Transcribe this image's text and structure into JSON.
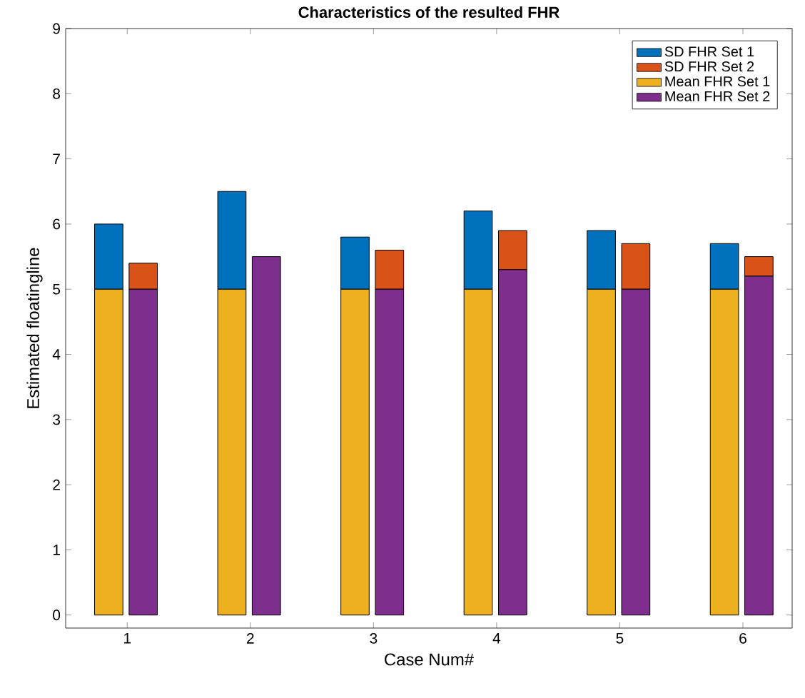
{
  "chart_data": {
    "type": "bar",
    "title": "Characteristics of the resulted FHR",
    "xlabel": "Case Num#",
    "ylabel": "Estimated floatingline",
    "categories": [
      "1",
      "2",
      "3",
      "4",
      "5",
      "6"
    ],
    "series": [
      {
        "name": "SD FHR Set 1",
        "color": "#0072bd",
        "values": [
          1.0,
          1.5,
          0.8,
          1.2,
          0.9,
          0.7
        ],
        "base": [
          5,
          5,
          5,
          5,
          5,
          5
        ]
      },
      {
        "name": "SD FHR Set 2",
        "color": "#d95319",
        "values": [
          0.4,
          null,
          0.6,
          0.6,
          0.7,
          0.3
        ],
        "base": [
          5.0,
          null,
          5.0,
          5.3,
          5.0,
          5.2
        ]
      },
      {
        "name": "Mean FHR Set 1",
        "color": "#edb120",
        "values": [
          5,
          5,
          5,
          5,
          5,
          5
        ]
      },
      {
        "name": "Mean FHR Set 2",
        "color": "#7e2f8e",
        "values": [
          5.0,
          5.5,
          5.0,
          5.3,
          5.0,
          5.2
        ]
      }
    ],
    "ylim": [
      -0.2,
      9
    ],
    "yticks": [
      0,
      1,
      2,
      3,
      4,
      5,
      6,
      7,
      8,
      9
    ],
    "grid": false,
    "legend": "top right"
  }
}
